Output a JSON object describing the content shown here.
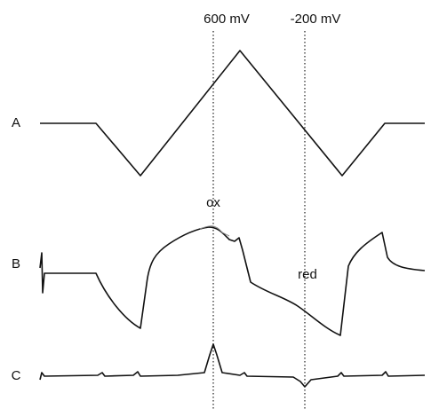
{
  "markers": [
    "600 mV",
    "-200 mV"
  ],
  "panels": [
    "A",
    "B",
    "C"
  ],
  "annotations": [
    "ox",
    "red"
  ]
}
